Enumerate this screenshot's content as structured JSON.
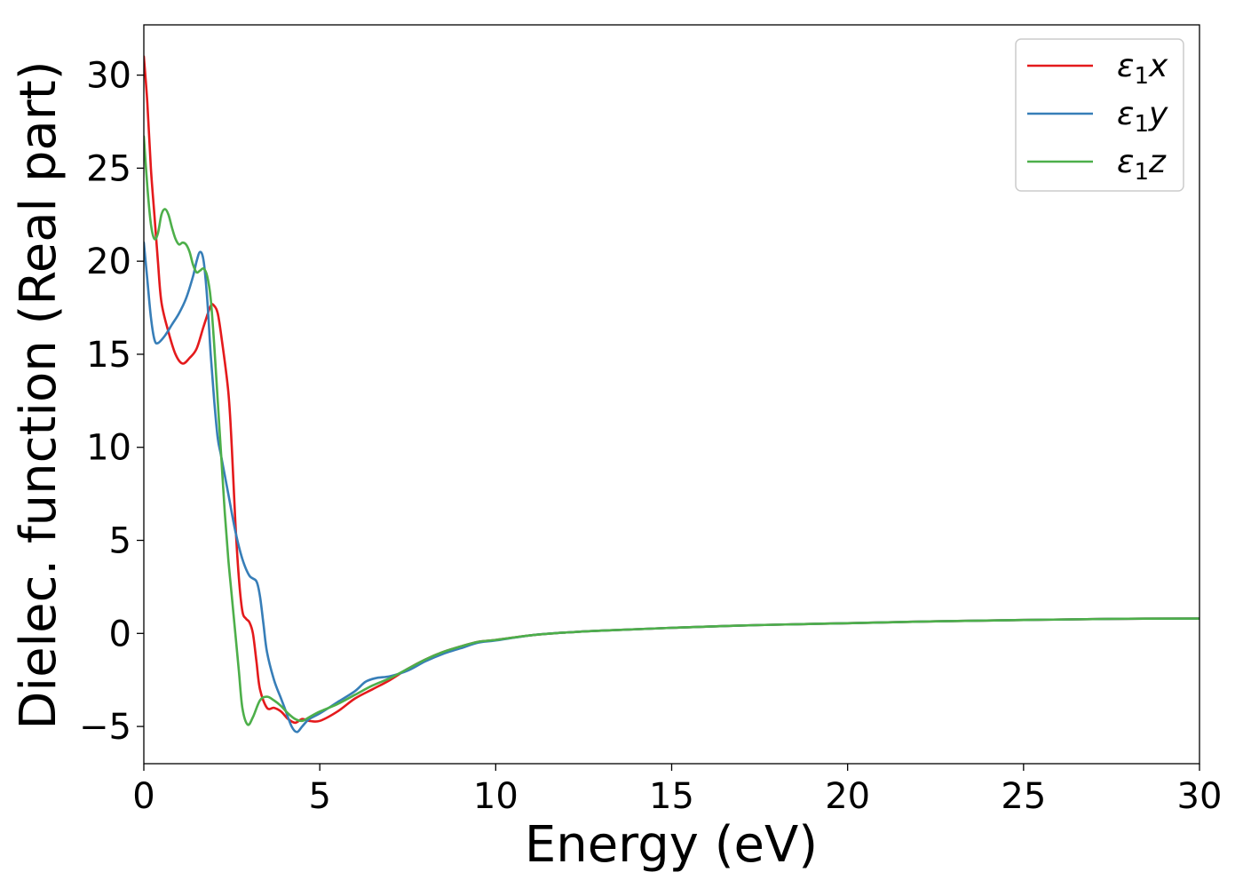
{
  "chart_data": {
    "type": "line",
    "title": "",
    "xlabel": "Energy (eV)",
    "ylabel": "Dielec. function (Real part)",
    "xlim": [
      0,
      30
    ],
    "ylim": [
      -7,
      32.7
    ],
    "xticks": [
      0,
      5,
      10,
      15,
      20,
      25,
      30
    ],
    "xtick_labels": [
      "0",
      "5",
      "10",
      "15",
      "20",
      "25",
      "30"
    ],
    "yticks": [
      -5,
      0,
      5,
      10,
      15,
      20,
      25,
      30
    ],
    "ytick_labels": [
      "−5",
      "0",
      "5",
      "10",
      "15",
      "20",
      "25",
      "30"
    ],
    "grid": false,
    "legend_position": "top-right",
    "series": [
      {
        "name": "ε₁x",
        "base": "ε",
        "sub": "1",
        "suffix": "x",
        "color": "#e41a1c",
        "points": [
          [
            0,
            31.0
          ],
          [
            0.1,
            28.5
          ],
          [
            0.2,
            25.0
          ],
          [
            0.3,
            22.5
          ],
          [
            0.4,
            20.0
          ],
          [
            0.5,
            17.8
          ],
          [
            0.7,
            16.2
          ],
          [
            0.9,
            15.0
          ],
          [
            1.1,
            14.5
          ],
          [
            1.3,
            14.8
          ],
          [
            1.5,
            15.3
          ],
          [
            1.7,
            16.5
          ],
          [
            1.9,
            17.6
          ],
          [
            2.0,
            17.6
          ],
          [
            2.1,
            17.2
          ],
          [
            2.2,
            16.0
          ],
          [
            2.4,
            13.0
          ],
          [
            2.5,
            10.0
          ],
          [
            2.6,
            6.0
          ],
          [
            2.7,
            3.0
          ],
          [
            2.8,
            1.2
          ],
          [
            2.9,
            0.8
          ],
          [
            3.0,
            0.6
          ],
          [
            3.1,
            0.0
          ],
          [
            3.2,
            -1.5
          ],
          [
            3.3,
            -3.0
          ],
          [
            3.5,
            -4.0
          ],
          [
            3.7,
            -4.0
          ],
          [
            3.9,
            -4.2
          ],
          [
            4.1,
            -4.6
          ],
          [
            4.3,
            -4.8
          ],
          [
            4.5,
            -4.6
          ],
          [
            4.7,
            -4.7
          ],
          [
            5.0,
            -4.7
          ],
          [
            5.5,
            -4.2
          ],
          [
            6.0,
            -3.5
          ],
          [
            6.5,
            -3.0
          ],
          [
            7.0,
            -2.5
          ],
          [
            7.5,
            -1.9
          ],
          [
            8.0,
            -1.4
          ],
          [
            8.5,
            -1.0
          ],
          [
            9.0,
            -0.7
          ],
          [
            9.5,
            -0.45
          ],
          [
            10,
            -0.35
          ],
          [
            11,
            -0.1
          ],
          [
            12,
            0.05
          ],
          [
            13,
            0.15
          ],
          [
            15,
            0.3
          ],
          [
            17.5,
            0.45
          ],
          [
            20,
            0.55
          ],
          [
            22.5,
            0.65
          ],
          [
            25,
            0.72
          ],
          [
            27.5,
            0.78
          ],
          [
            30,
            0.8
          ]
        ]
      },
      {
        "name": "ε₁y",
        "base": "ε",
        "sub": "1",
        "suffix": "y",
        "color": "#377eb8",
        "points": [
          [
            0,
            21.0
          ],
          [
            0.1,
            19.0
          ],
          [
            0.2,
            17.0
          ],
          [
            0.3,
            15.8
          ],
          [
            0.4,
            15.6
          ],
          [
            0.6,
            16.0
          ],
          [
            0.8,
            16.6
          ],
          [
            1.0,
            17.2
          ],
          [
            1.2,
            18.0
          ],
          [
            1.4,
            19.2
          ],
          [
            1.5,
            20.0
          ],
          [
            1.6,
            20.5
          ],
          [
            1.7,
            20.0
          ],
          [
            1.8,
            18.0
          ],
          [
            1.9,
            15.0
          ],
          [
            2.0,
            12.5
          ],
          [
            2.1,
            10.5
          ],
          [
            2.2,
            9.5
          ],
          [
            2.4,
            7.5
          ],
          [
            2.6,
            5.5
          ],
          [
            2.8,
            4.0
          ],
          [
            3.0,
            3.1
          ],
          [
            3.2,
            2.8
          ],
          [
            3.3,
            2.0
          ],
          [
            3.4,
            0.5
          ],
          [
            3.5,
            -1.0
          ],
          [
            3.7,
            -2.5
          ],
          [
            3.9,
            -3.5
          ],
          [
            4.0,
            -4.0
          ],
          [
            4.2,
            -5.0
          ],
          [
            4.35,
            -5.3
          ],
          [
            4.5,
            -5.0
          ],
          [
            4.7,
            -4.6
          ],
          [
            5.0,
            -4.3
          ],
          [
            5.5,
            -3.7
          ],
          [
            6.0,
            -3.1
          ],
          [
            6.3,
            -2.6
          ],
          [
            6.6,
            -2.4
          ],
          [
            7.0,
            -2.3
          ],
          [
            7.5,
            -2.0
          ],
          [
            8.0,
            -1.5
          ],
          [
            8.5,
            -1.1
          ],
          [
            9.0,
            -0.8
          ],
          [
            9.5,
            -0.5
          ],
          [
            10,
            -0.38
          ],
          [
            11,
            -0.1
          ],
          [
            12,
            0.05
          ],
          [
            13,
            0.15
          ],
          [
            15,
            0.3
          ],
          [
            17.5,
            0.45
          ],
          [
            20,
            0.55
          ],
          [
            22.5,
            0.65
          ],
          [
            25,
            0.72
          ],
          [
            27.5,
            0.78
          ],
          [
            30,
            0.8
          ]
        ]
      },
      {
        "name": "ε₁z",
        "base": "ε",
        "sub": "1",
        "suffix": "z",
        "color": "#4daf4a",
        "points": [
          [
            0,
            26.7
          ],
          [
            0.1,
            24.0
          ],
          [
            0.2,
            22.0
          ],
          [
            0.3,
            21.2
          ],
          [
            0.4,
            21.5
          ],
          [
            0.5,
            22.5
          ],
          [
            0.6,
            22.8
          ],
          [
            0.7,
            22.5
          ],
          [
            0.8,
            21.8
          ],
          [
            0.9,
            21.2
          ],
          [
            1.0,
            20.9
          ],
          [
            1.1,
            21.0
          ],
          [
            1.2,
            20.9
          ],
          [
            1.3,
            20.5
          ],
          [
            1.4,
            19.8
          ],
          [
            1.5,
            19.4
          ],
          [
            1.6,
            19.5
          ],
          [
            1.7,
            19.6
          ],
          [
            1.8,
            19.2
          ],
          [
            1.9,
            18.0
          ],
          [
            2.0,
            15.5
          ],
          [
            2.1,
            12.5
          ],
          [
            2.2,
            9.5
          ],
          [
            2.3,
            6.5
          ],
          [
            2.4,
            4.0
          ],
          [
            2.5,
            2.0
          ],
          [
            2.6,
            0.0
          ],
          [
            2.7,
            -2.0
          ],
          [
            2.8,
            -4.0
          ],
          [
            2.95,
            -4.9
          ],
          [
            3.1,
            -4.5
          ],
          [
            3.3,
            -3.6
          ],
          [
            3.5,
            -3.4
          ],
          [
            3.7,
            -3.6
          ],
          [
            3.9,
            -3.9
          ],
          [
            4.1,
            -4.3
          ],
          [
            4.3,
            -4.6
          ],
          [
            4.5,
            -4.7
          ],
          [
            4.7,
            -4.5
          ],
          [
            5.0,
            -4.2
          ],
          [
            5.5,
            -3.8
          ],
          [
            6.0,
            -3.3
          ],
          [
            6.5,
            -2.8
          ],
          [
            7.0,
            -2.4
          ],
          [
            7.5,
            -1.9
          ],
          [
            8.0,
            -1.4
          ],
          [
            8.5,
            -1.0
          ],
          [
            9.0,
            -0.7
          ],
          [
            9.5,
            -0.45
          ],
          [
            10,
            -0.35
          ],
          [
            11,
            -0.1
          ],
          [
            12,
            0.05
          ],
          [
            13,
            0.15
          ],
          [
            15,
            0.3
          ],
          [
            17.5,
            0.45
          ],
          [
            20,
            0.55
          ],
          [
            22.5,
            0.65
          ],
          [
            25,
            0.72
          ],
          [
            27.5,
            0.78
          ],
          [
            30,
            0.8
          ]
        ]
      }
    ]
  }
}
